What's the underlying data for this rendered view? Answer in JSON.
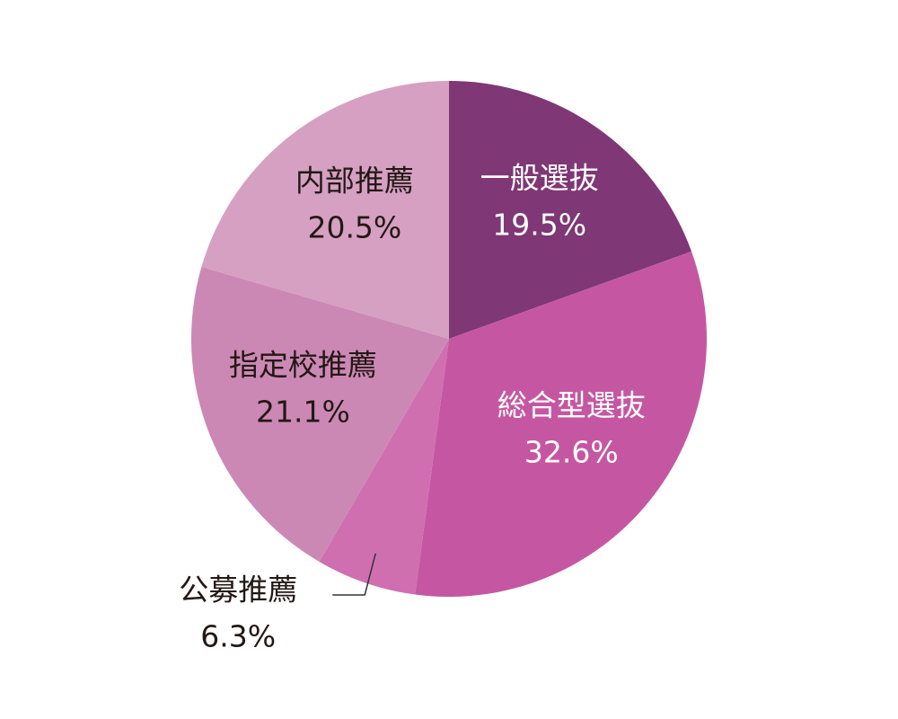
{
  "chart_data": {
    "type": "pie",
    "categories": [
      "一般選抜",
      "総合型選抜",
      "公募推薦",
      "指定校推薦",
      "内部推薦"
    ],
    "values": [
      19.5,
      32.6,
      6.3,
      21.1,
      20.5
    ],
    "value_labels": [
      "19.5%",
      "32.6%",
      "6.3%",
      "21.1%",
      "20.5%"
    ],
    "colors": [
      "#7f3775",
      "#c557a2",
      "#cf6fb0",
      "#cc88b4",
      "#d6a0c2"
    ]
  }
}
